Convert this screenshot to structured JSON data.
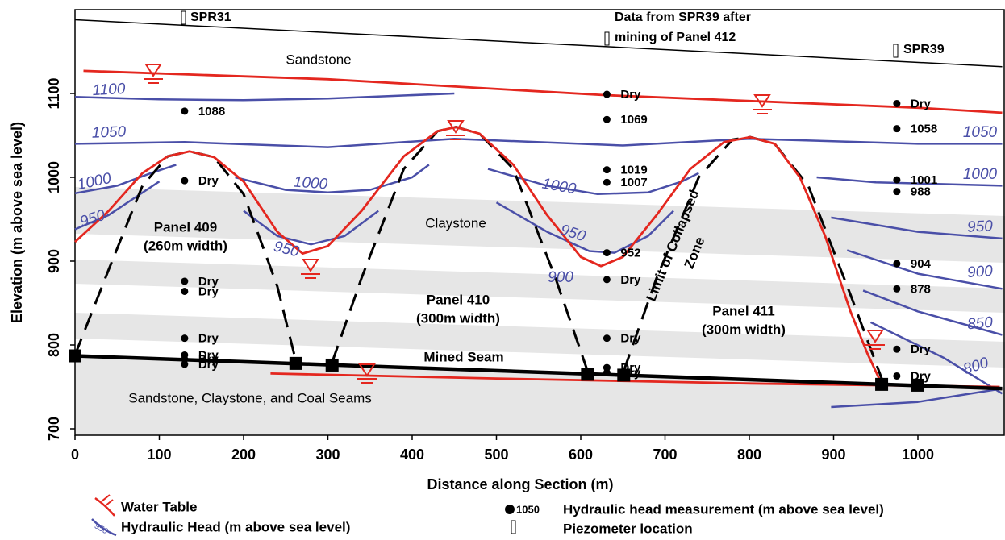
{
  "chart_data": {
    "type": "cross-section",
    "xlabel": "Distance along Section (m)",
    "ylabel": "Elevation (m above sea level)",
    "xlim": [
      0,
      1100
    ],
    "ylim": [
      695,
      1200
    ],
    "xticks": [
      0,
      100,
      200,
      300,
      400,
      500,
      600,
      700,
      800,
      900,
      1000
    ],
    "yticks": [
      700,
      800,
      900,
      1000,
      1100
    ],
    "series": [
      {
        "name": "Water Table",
        "color": "#e4271f",
        "x": [
          0,
          40,
          80,
          110,
          136,
          165,
          200,
          240,
          270,
          300,
          340,
          390,
          430,
          452,
          480,
          520,
          560,
          600,
          624,
          650,
          690,
          730,
          770,
          801,
          830,
          860,
          890,
          920,
          940,
          954,
          null,
          232,
          500,
          800,
          1097,
          null,
          10,
          300,
          630,
          1000,
          1100
        ],
        "y": [
          923,
          960,
          1005,
          1025,
          1031,
          1024,
          995,
          935,
          909,
          918,
          960,
          1025,
          1055,
          1060,
          1052,
          1015,
          955,
          905,
          894,
          905,
          955,
          1010,
          1042,
          1048,
          1040,
          1000,
          930,
          840,
          790,
          760,
          null,
          766,
          760,
          754,
          750,
          null,
          1127,
          1117,
          1098,
          1083,
          1077
        ]
      },
      {
        "name": "Hydraulic Head (m above sea level)",
        "color": "#4a4fa8",
        "x": [
          0,
          100,
          200,
          300,
          450,
          null,
          0,
          130,
          300,
          450,
          650,
          800,
          1000,
          1100,
          null,
          0,
          50,
          90,
          120,
          null,
          190,
          250,
          300,
          350,
          400,
          420,
          null,
          490,
          560,
          620,
          680,
          720,
          740,
          null,
          880,
          950,
          1100,
          null,
          0,
          40,
          70,
          100,
          null,
          200,
          240,
          280,
          320,
          360,
          null,
          500,
          560,
          610,
          640,
          680,
          710,
          null,
          897,
          1000,
          1100,
          null,
          916,
          1000,
          1100,
          null,
          935,
          1000,
          1100,
          null,
          944,
          1030,
          1100,
          null,
          897,
          1000,
          1100
        ],
        "y": [
          1096,
          1093,
          1092,
          1094,
          1100,
          null,
          1040,
          1042,
          1036,
          1046,
          1038,
          1046,
          1040,
          1040,
          null,
          981,
          990,
          1005,
          1015,
          null,
          1000,
          985,
          982,
          985,
          1000,
          1015,
          null,
          1010,
          990,
          980,
          982,
          995,
          1005,
          null,
          1000,
          994,
          990,
          null,
          938,
          955,
          975,
          995,
          null,
          960,
          930,
          920,
          930,
          960,
          null,
          970,
          935,
          912,
          910,
          930,
          960,
          null,
          952,
          935,
          927,
          null,
          913,
          885,
          867,
          null,
          865,
          840,
          812,
          null,
          827,
          785,
          742,
          null,
          726,
          732,
          748
        ]
      }
    ],
    "collapse": {
      "x": [
        0,
        40,
        80,
        110,
        136,
        165,
        200,
        240,
        262,
        null,
        305,
        340,
        390,
        430,
        452,
        480,
        520,
        570,
        608,
        null,
        651,
        690,
        740,
        780,
        801,
        830,
        870,
        920,
        957
      ],
      "y": [
        788,
        890,
        990,
        1025,
        1031,
        1024,
        980,
        870,
        781,
        null,
        779,
        880,
        1010,
        1055,
        1060,
        1052,
        1010,
        880,
        769,
        null,
        769,
        880,
        1000,
        1045,
        1048,
        1040,
        990,
        860,
        760
      ]
    },
    "ground": {
      "x": [
        0,
        1100
      ],
      "y": [
        1188,
        1132
      ]
    },
    "seam": {
      "x": [
        0,
        1100
      ],
      "y": [
        787,
        748
      ]
    },
    "panel_edges": {
      "x": [
        0,
        262,
        305,
        608,
        651,
        957,
        1000
      ],
      "y": [
        787,
        778,
        776,
        765,
        764,
        753,
        752
      ]
    },
    "points": {
      "x": [
        130,
        130,
        130,
        130,
        130,
        130,
        130,
        130,
        631,
        631,
        631,
        631,
        631,
        631,
        631,
        631,
        631,
        975,
        975,
        975,
        975,
        975,
        975,
        975,
        975
      ],
      "y": [
        1079,
        996,
        876,
        864,
        808,
        788,
        783,
        777,
        1099,
        1069,
        1009,
        994,
        910,
        878,
        808,
        773,
        767,
        1088,
        1058,
        997,
        983,
        897,
        867,
        795,
        763
      ],
      "labels": [
        "1088",
        "Dry",
        "Dry",
        "Dry",
        "Dry",
        "Dry",
        "Dry",
        "Dry",
        "Dry",
        "1069",
        "1019",
        "1007",
        "952",
        "Dry",
        "Dry",
        "Dry",
        "Dry",
        "Dry",
        "1058",
        "1001",
        "988",
        "904",
        "878",
        "Dry",
        "Dry"
      ]
    },
    "contour_labels": [
      1100,
      1050,
      1000,
      950,
      1000,
      950,
      1000,
      950,
      900,
      1050,
      1000,
      950,
      900,
      850,
      800
    ],
    "annotations": {
      "spr31": "SPR31",
      "data_from": "Data from SPR39 after",
      "mining": "mining of Panel 412",
      "spr39": "SPR39",
      "sandstone": "Sandstone",
      "claystone": "Claystone",
      "panel409": "Panel 409",
      "width409": "(260m width)",
      "panel410": "Panel 410",
      "width410": "(300m width)",
      "panel411": "Panel 411",
      "width411": "(300m width)",
      "limit1": "Limit of Collapsed",
      "limit2": "Zone",
      "seam": "Mined Seam",
      "lower": "Sandstone, Claystone, and Coal Seams"
    },
    "legend": {
      "head_icon": 950,
      "sample_head": 1050,
      "measurement": "Hydraulic head measurement (m above sea level)",
      "piezometer": "Piezometer location"
    }
  }
}
